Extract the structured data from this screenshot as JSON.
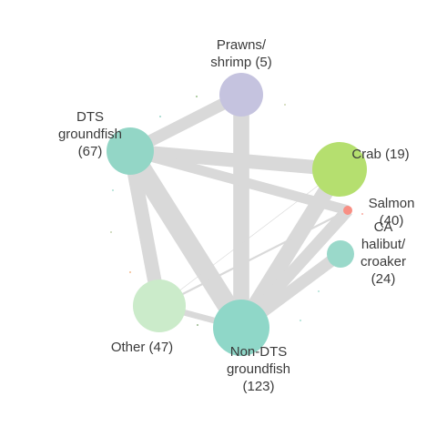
{
  "diagram": {
    "type": "network",
    "colors": {
      "edge": "#d9d9d9",
      "label": "#3a3a3a"
    },
    "nodes": [
      {
        "id": "prawns",
        "label_lines": [
          "Prawns/",
          "shrimp (5)"
        ],
        "value": 5,
        "color": "#c5c3df"
      },
      {
        "id": "dts",
        "label_lines": [
          "DTS",
          "groundfish",
          "(67)"
        ],
        "value": 67,
        "color": "#93d6c6"
      },
      {
        "id": "crab",
        "label_lines": [
          "Crab (19)"
        ],
        "value": 19,
        "color": "#b5df6f"
      },
      {
        "id": "salmon",
        "label_lines": [
          "Salmon",
          "(40)"
        ],
        "value": 40,
        "color": "#f88f84"
      },
      {
        "id": "halibut",
        "label_lines": [
          "CA",
          "halibut/",
          "croaker",
          "(24)"
        ],
        "value": 24,
        "color": "#9ad9ca"
      },
      {
        "id": "other",
        "label_lines": [
          "Other (47)"
        ],
        "value": 47,
        "color": "#cbebca"
      },
      {
        "id": "nondts",
        "label_lines": [
          "Non-DTS",
          "groundfish",
          "(123)"
        ],
        "value": 123,
        "color": "#8fd7c8"
      }
    ],
    "edges": [
      {
        "source": "prawns",
        "target": "dts",
        "weight": 6
      },
      {
        "source": "prawns",
        "target": "nondts",
        "weight": 8
      },
      {
        "source": "dts",
        "target": "crab",
        "weight": 7
      },
      {
        "source": "dts",
        "target": "salmon",
        "weight": 5
      },
      {
        "source": "dts",
        "target": "other",
        "weight": 7
      },
      {
        "source": "dts",
        "target": "nondts",
        "weight": 10
      },
      {
        "source": "crab",
        "target": "nondts",
        "weight": 8
      },
      {
        "source": "crab",
        "target": "other",
        "weight": 0.3
      },
      {
        "source": "salmon",
        "target": "nondts",
        "weight": 6
      },
      {
        "source": "salmon",
        "target": "other",
        "weight": 1
      },
      {
        "source": "halibut",
        "target": "nondts",
        "weight": 6
      },
      {
        "source": "other",
        "target": "nondts",
        "weight": 3
      }
    ]
  }
}
